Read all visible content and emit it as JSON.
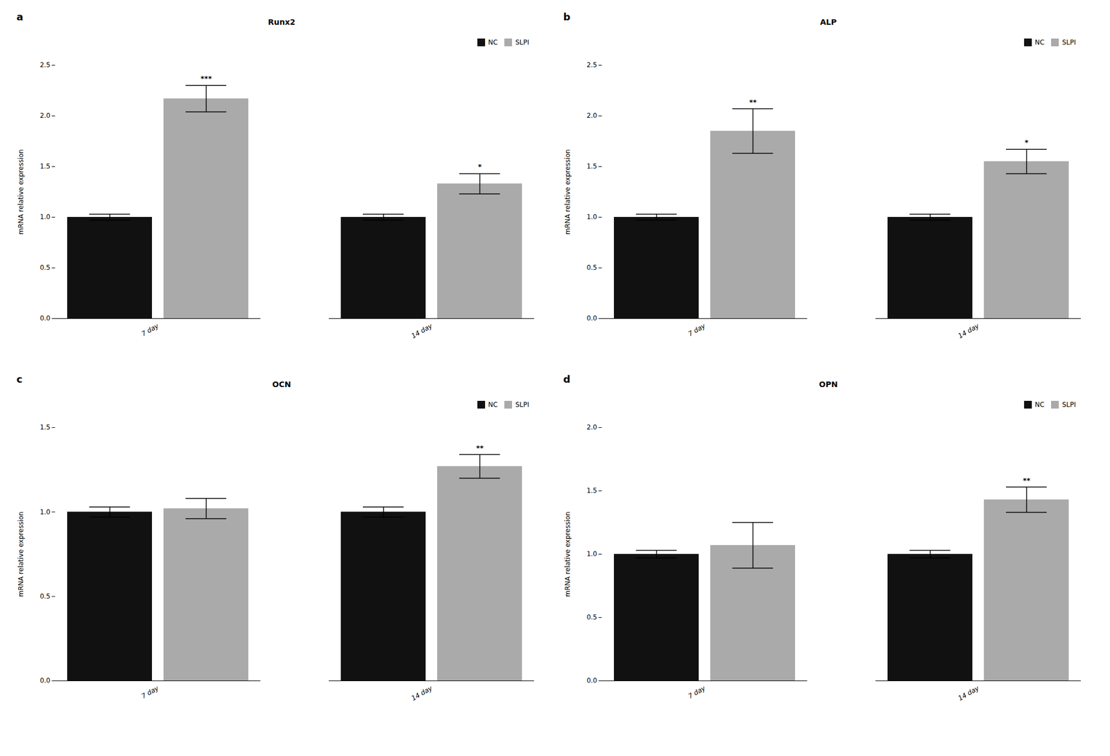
{
  "chart_data": [
    {
      "type": "bar",
      "panel_label": "a",
      "title": "Runx2",
      "ylabel": "mRNA relative expression",
      "categories": [
        "7 day",
        "14 day"
      ],
      "series": [
        {
          "name": "NC",
          "color": "#111111",
          "values": [
            1.0,
            1.0
          ],
          "errors": [
            0.03,
            0.03
          ]
        },
        {
          "name": "SLPI",
          "color": "#aaaaaa",
          "values": [
            2.17,
            1.33
          ],
          "errors": [
            0.13,
            0.1
          ],
          "significance": [
            "***",
            "*"
          ]
        }
      ],
      "ylim": [
        0,
        2.5
      ],
      "yticks": [
        {
          "value": 0,
          "label": "0.0"
        },
        0.5,
        {
          "value": 1,
          "label": "1.0"
        },
        1.5,
        {
          "value": 2,
          "label": "2.0"
        },
        2.5
      ],
      "legend": "upper right"
    },
    {
      "type": "bar",
      "panel_label": "b",
      "title": "ALP",
      "ylabel": "mRNA relative expression",
      "categories": [
        "7 day",
        "14 day"
      ],
      "series": [
        {
          "name": "NC",
          "color": "#111111",
          "values": [
            1.0,
            1.0
          ],
          "errors": [
            0.03,
            0.03
          ]
        },
        {
          "name": "SLPI",
          "color": "#aaaaaa",
          "values": [
            1.85,
            1.55
          ],
          "errors": [
            0.22,
            0.12
          ],
          "significance": [
            "**",
            "*"
          ]
        }
      ],
      "ylim": [
        0,
        2.5
      ],
      "yticks": [
        {
          "value": 0,
          "label": "0.0"
        },
        0.5,
        {
          "value": 1,
          "label": "1.0"
        },
        1.5,
        {
          "value": 2,
          "label": "2.0"
        },
        2.5
      ],
      "legend": "upper right"
    },
    {
      "type": "bar",
      "panel_label": "c",
      "title": "OCN",
      "ylabel": "mRNA relative expression",
      "categories": [
        "7 day",
        "14 day"
      ],
      "series": [
        {
          "name": "NC",
          "color": "#111111",
          "values": [
            1.0,
            1.0
          ],
          "errors": [
            0.03,
            0.03
          ]
        },
        {
          "name": "SLPI",
          "color": "#aaaaaa",
          "values": [
            1.02,
            1.27
          ],
          "errors": [
            0.06,
            0.07
          ],
          "significance": [
            null,
            "**"
          ]
        }
      ],
      "ylim": [
        0,
        1.5
      ],
      "yticks": [
        {
          "value": 0,
          "label": "0.0"
        },
        0.5,
        {
          "value": 1,
          "label": "1.0"
        },
        1.5
      ],
      "legend": "upper right"
    },
    {
      "type": "bar",
      "panel_label": "d",
      "title": "OPN",
      "ylabel": "mRNA relative expression",
      "categories": [
        "7 day",
        "14 day"
      ],
      "series": [
        {
          "name": "NC",
          "color": "#111111",
          "values": [
            1.0,
            1.0
          ],
          "errors": [
            0.03,
            0.03
          ]
        },
        {
          "name": "SLPI",
          "color": "#aaaaaa",
          "values": [
            1.07,
            1.43
          ],
          "errors": [
            0.18,
            0.1
          ],
          "significance": [
            null,
            "**"
          ]
        }
      ],
      "ylim": [
        0,
        2.0
      ],
      "yticks": [
        {
          "value": 0,
          "label": "0.0"
        },
        0.5,
        {
          "value": 1,
          "label": "1.0"
        },
        1.5,
        {
          "value": 2,
          "label": "2.0"
        }
      ],
      "legend": "upper right"
    }
  ]
}
